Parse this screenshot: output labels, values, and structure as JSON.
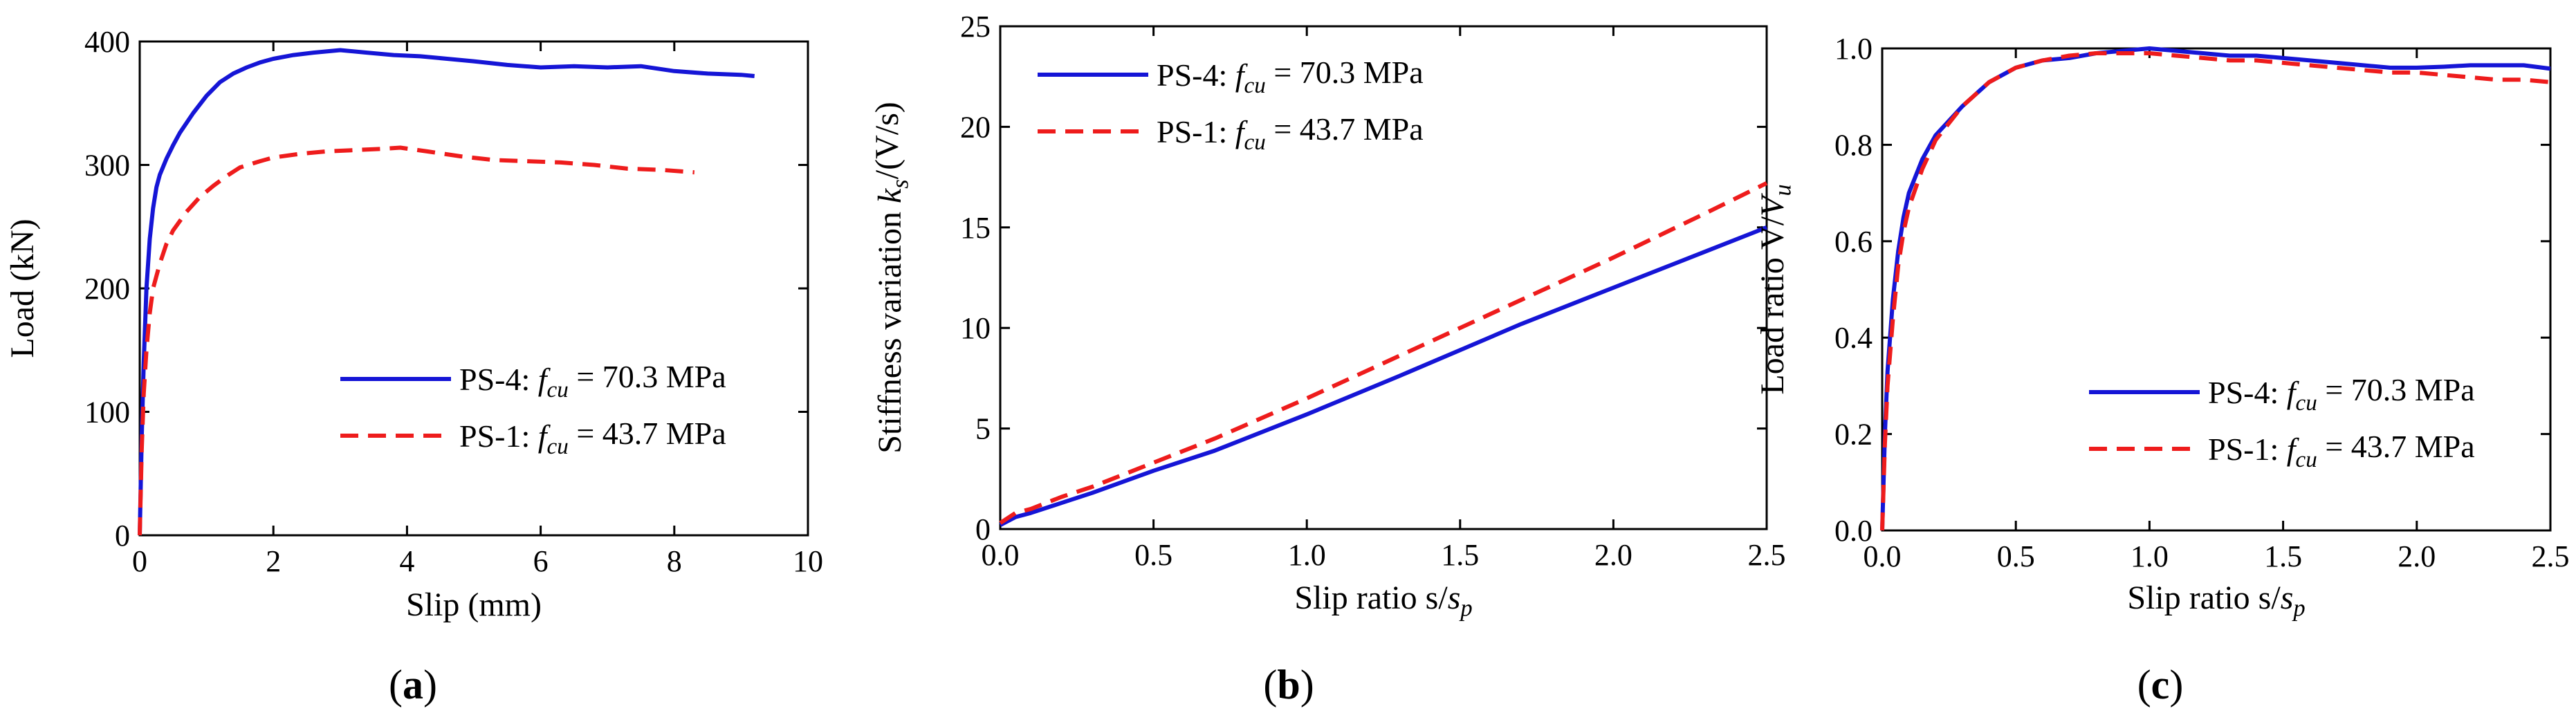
{
  "figure_labels": {
    "panel_a": {
      "paren_open": "(",
      "letter": "a",
      "paren_close": ")"
    },
    "panel_b": {
      "paren_open": "(",
      "letter": "b",
      "paren_close": ")"
    },
    "panel_c": {
      "paren_open": "(",
      "letter": "c",
      "paren_close": ")"
    }
  },
  "colors": {
    "ps4": "#1515d6",
    "ps1": "#ee1c1c",
    "axis": "#000000"
  },
  "chart_data": [
    {
      "id": "a",
      "type": "line",
      "title": "",
      "xlabel": "Slip (mm)",
      "ylabel": "Load (kN)",
      "xlim": [
        0,
        10
      ],
      "ylim": [
        0,
        400
      ],
      "xticks": [
        "0",
        "2",
        "4",
        "6",
        "8",
        "10"
      ],
      "yticks": [
        "0",
        "100",
        "200",
        "300",
        "400"
      ],
      "legend_position": "bottom-right",
      "series": [
        {
          "name": "PS-4",
          "label": "PS-4: f_cu = 70.3 MPa",
          "style": "solid",
          "x": [
            0,
            0.03,
            0.06,
            0.1,
            0.15,
            0.2,
            0.25,
            0.3,
            0.4,
            0.5,
            0.6,
            0.8,
            1.0,
            1.2,
            1.4,
            1.6,
            1.8,
            2.0,
            2.3,
            2.6,
            3.0,
            3.4,
            3.8,
            4.2,
            4.6,
            5.0,
            5.5,
            6.0,
            6.5,
            7.0,
            7.5,
            8.0,
            8.5,
            9.0,
            9.2
          ],
          "y": [
            0,
            80,
            140,
            200,
            240,
            265,
            282,
            292,
            305,
            316,
            326,
            342,
            356,
            367,
            374,
            379,
            383,
            386,
            389,
            391,
            393,
            391,
            389,
            388,
            386,
            384,
            381,
            379,
            380,
            379,
            380,
            376,
            374,
            373,
            372
          ]
        },
        {
          "name": "PS-1",
          "label": "PS-1: f_cu = 43.7 MPa",
          "style": "dashed",
          "x": [
            0,
            0.03,
            0.06,
            0.1,
            0.15,
            0.2,
            0.3,
            0.4,
            0.5,
            0.7,
            0.9,
            1.1,
            1.3,
            1.5,
            1.8,
            2.0,
            2.4,
            2.8,
            3.2,
            3.6,
            3.9,
            4.3,
            4.8,
            5.3,
            5.8,
            6.3,
            6.8,
            7.3,
            7.8,
            8.3
          ],
          "y": [
            0,
            70,
            115,
            150,
            180,
            200,
            220,
            236,
            247,
            262,
            274,
            283,
            291,
            298,
            303,
            306,
            309,
            311,
            312,
            313,
            314,
            311,
            307,
            304,
            303,
            302,
            300,
            297,
            296,
            294
          ]
        }
      ]
    },
    {
      "id": "b",
      "type": "line",
      "title": "",
      "xlabel": "Slip ratio s/s_p",
      "ylabel": "Stiffness variation k_s/(V/s)",
      "xlim": [
        0,
        2.5
      ],
      "ylim": [
        0,
        25
      ],
      "xticks": [
        "0.0",
        "0.5",
        "1.0",
        "1.5",
        "2.0",
        "2.5"
      ],
      "yticks": [
        "0",
        "5",
        "10",
        "15",
        "20",
        "25"
      ],
      "legend_position": "top-left",
      "series": [
        {
          "name": "PS-4",
          "label": "PS-4: f_cu = 70.3 MPa",
          "style": "solid",
          "x": [
            0,
            0.05,
            0.1,
            0.2,
            0.3,
            0.5,
            0.7,
            1.0,
            1.3,
            1.5,
            1.7,
            2.0,
            2.3,
            2.5
          ],
          "y": [
            0.2,
            0.6,
            0.8,
            1.3,
            1.8,
            2.9,
            3.9,
            5.7,
            7.6,
            8.9,
            10.2,
            12.0,
            13.8,
            15.0
          ]
        },
        {
          "name": "PS-1",
          "label": "PS-1: f_cu = 43.7 MPa",
          "style": "dashed",
          "x": [
            0,
            0.05,
            0.1,
            0.2,
            0.3,
            0.5,
            0.7,
            1.0,
            1.3,
            1.5,
            1.7,
            2.0,
            2.3,
            2.5
          ],
          "y": [
            0.3,
            0.8,
            1.0,
            1.6,
            2.1,
            3.3,
            4.5,
            6.5,
            8.6,
            10.0,
            11.4,
            13.5,
            15.7,
            17.2
          ]
        }
      ]
    },
    {
      "id": "c",
      "type": "line",
      "title": "",
      "xlabel": "Slip ratio s/s_p",
      "ylabel": "Load ratio V/V_u",
      "xlim": [
        0,
        2.5
      ],
      "ylim": [
        0,
        1.0
      ],
      "xticks": [
        "0.0",
        "0.5",
        "1.0",
        "1.5",
        "2.0",
        "2.5"
      ],
      "yticks": [
        "0.0",
        "0.2",
        "0.4",
        "0.6",
        "0.8",
        "1.0"
      ],
      "legend_position": "bottom-right",
      "series": [
        {
          "name": "PS-4",
          "label": "PS-4: f_cu = 70.3 MPa",
          "style": "solid",
          "x": [
            0,
            0.01,
            0.02,
            0.04,
            0.06,
            0.08,
            0.1,
            0.15,
            0.2,
            0.3,
            0.4,
            0.5,
            0.6,
            0.7,
            0.8,
            0.9,
            1.0,
            1.1,
            1.2,
            1.3,
            1.4,
            1.5,
            1.6,
            1.7,
            1.8,
            1.9,
            2.0,
            2.1,
            2.2,
            2.3,
            2.4,
            2.5
          ],
          "y": [
            0,
            0.2,
            0.33,
            0.48,
            0.58,
            0.65,
            0.7,
            0.77,
            0.82,
            0.88,
            0.93,
            0.96,
            0.975,
            0.98,
            0.99,
            0.995,
            1.0,
            0.995,
            0.99,
            0.985,
            0.985,
            0.98,
            0.975,
            0.97,
            0.965,
            0.96,
            0.96,
            0.962,
            0.965,
            0.965,
            0.965,
            0.958
          ]
        },
        {
          "name": "PS-1",
          "label": "PS-1: f_cu = 43.7 MPa",
          "style": "dashed",
          "x": [
            0,
            0.01,
            0.02,
            0.04,
            0.06,
            0.08,
            0.1,
            0.15,
            0.2,
            0.3,
            0.4,
            0.5,
            0.6,
            0.7,
            0.8,
            0.9,
            1.0,
            1.1,
            1.2,
            1.3,
            1.4,
            1.5,
            1.6,
            1.7,
            1.8,
            1.9,
            2.0,
            2.1,
            2.2,
            2.3,
            2.4,
            2.5
          ],
          "y": [
            0,
            0.18,
            0.3,
            0.44,
            0.55,
            0.62,
            0.67,
            0.75,
            0.81,
            0.88,
            0.93,
            0.96,
            0.975,
            0.985,
            0.99,
            0.99,
            0.99,
            0.985,
            0.98,
            0.975,
            0.975,
            0.97,
            0.965,
            0.96,
            0.955,
            0.95,
            0.95,
            0.945,
            0.94,
            0.935,
            0.935,
            0.93
          ]
        }
      ]
    }
  ]
}
